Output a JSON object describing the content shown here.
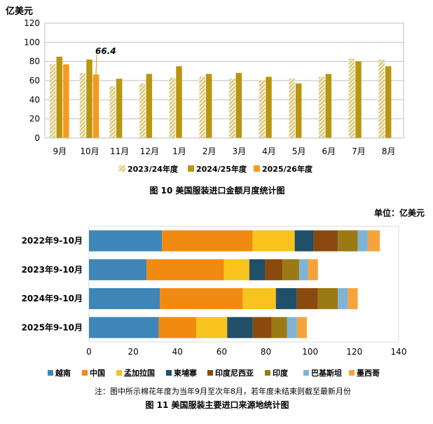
{
  "colors": {
    "c2023": "#c9b25a",
    "c2024": "#b8960f",
    "c2025": "#f59a1e",
    "grid": "#bfbfbf",
    "vietnam": "#3f86b8",
    "china": "#f18a10",
    "bangladesh": "#f7c31c",
    "cambodia": "#1f4f69",
    "indonesia": "#8b4a0d",
    "india": "#9b7a14",
    "pakistan": "#7eb4d6",
    "mexico": "#f7a33b"
  },
  "chart1": {
    "y_unit": "亿美元",
    "caption": "图 10    美国服装进口金额月度统计图",
    "annotation": "66.4"
  },
  "chart2": {
    "unit_label": "单位：亿美元",
    "note": "注：图中所示棉花年度为当年9月至次年8月，若年度未结束则截至最新月份",
    "caption": "图 11    美国服装主要进口来源地统计图"
  },
  "chart_data": [
    {
      "type": "bar",
      "title": "",
      "ylabel": "亿美元",
      "ylim": [
        0,
        120
      ],
      "yticks": [
        0,
        20,
        40,
        60,
        80,
        100,
        120
      ],
      "grid": true,
      "legend_position": "bottom",
      "categories": [
        "9月",
        "10月",
        "11月",
        "12月",
        "1月",
        "2月",
        "3月",
        "4月",
        "5月",
        "6月",
        "7月",
        "8月"
      ],
      "series": [
        {
          "name": "2023/24年度",
          "values": [
            77,
            68,
            54,
            57,
            63,
            64,
            62,
            60,
            62,
            64,
            83,
            82
          ],
          "pattern": "hatched"
        },
        {
          "name": "2024/25年度",
          "values": [
            85,
            82,
            62,
            67,
            75,
            67,
            68,
            64,
            57,
            67,
            80,
            75
          ]
        },
        {
          "name": "2025/26年度",
          "values": [
            77,
            66.4,
            null,
            null,
            null,
            null,
            null,
            null,
            null,
            null,
            null,
            null
          ]
        }
      ],
      "annotations": [
        {
          "category": "10月",
          "series": "2025/26年度",
          "text": "66.4"
        }
      ]
    },
    {
      "type": "bar",
      "orientation": "horizontal",
      "stacked": true,
      "title": "",
      "xlim": [
        0,
        140
      ],
      "xticks": [
        0,
        20,
        40,
        60,
        80,
        100,
        120,
        140
      ],
      "grid": false,
      "legend_position": "bottom",
      "categories": [
        "2022年9-10月",
        "2023年9-10月",
        "2024年9-10月",
        "2025年9-10月"
      ],
      "series": [
        {
          "name": "越南",
          "values": [
            33,
            26,
            32,
            31.5
          ]
        },
        {
          "name": "中国",
          "values": [
            41,
            35,
            37.5,
            17
          ]
        },
        {
          "name": "孟加拉国",
          "values": [
            19,
            11.5,
            15,
            14
          ]
        },
        {
          "name": "柬埔寨",
          "values": [
            8.5,
            7,
            9.5,
            11.5
          ]
        },
        {
          "name": "印度尼西亚",
          "values": [
            11,
            8,
            9.5,
            8.5
          ]
        },
        {
          "name": "印度",
          "values": [
            9,
            7.5,
            9,
            7
          ]
        },
        {
          "name": "巴基斯坦",
          "values": [
            4.5,
            4,
            4.5,
            4.5
          ]
        },
        {
          "name": "墨西哥",
          "values": [
            5.5,
            4.5,
            4.5,
            4.5
          ]
        }
      ]
    }
  ]
}
